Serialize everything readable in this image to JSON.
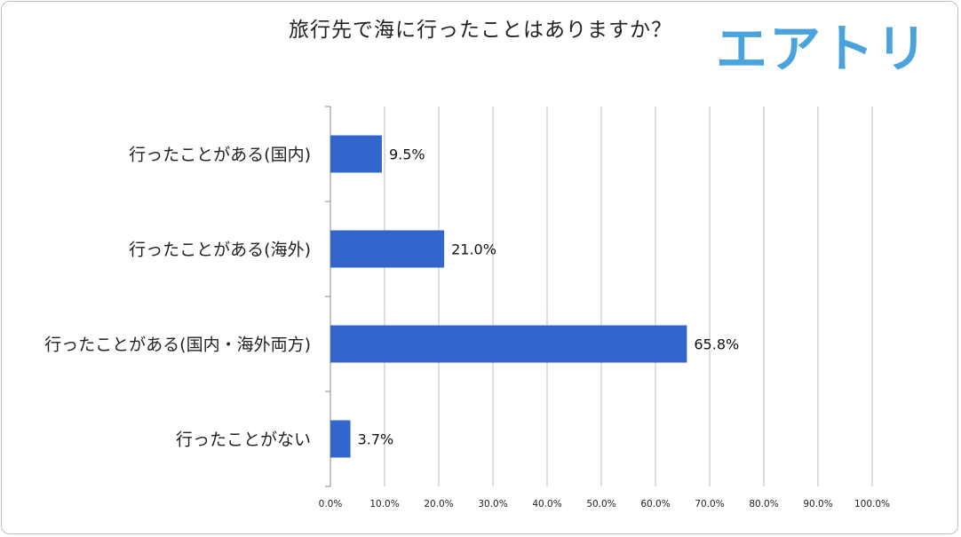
{
  "logo_text": "エアトリ",
  "chart_data": {
    "type": "bar",
    "orientation": "horizontal",
    "title": "旅行先で海に行ったことはありますか？",
    "categories": [
      "行ったことがある(国内)",
      "行ったことがある(海外)",
      "行ったことがある(国内・海外両方)",
      "行ったことがない"
    ],
    "values": [
      9.5,
      21.0,
      65.8,
      3.7
    ],
    "value_labels": [
      "9.5%",
      "21.0%",
      "65.8%",
      "3.7%"
    ],
    "xlim": [
      0,
      100
    ],
    "ticks": [
      0,
      10,
      20,
      30,
      40,
      50,
      60,
      70,
      80,
      90,
      100
    ],
    "tick_labels": [
      "0.0%",
      "10.0%",
      "20.0%",
      "30.0%",
      "40.0%",
      "50.0%",
      "60.0%",
      "70.0%",
      "80.0%",
      "90.0%",
      "100.0%"
    ],
    "bar_color": "#3366cc",
    "grid": true,
    "legend": "none"
  }
}
